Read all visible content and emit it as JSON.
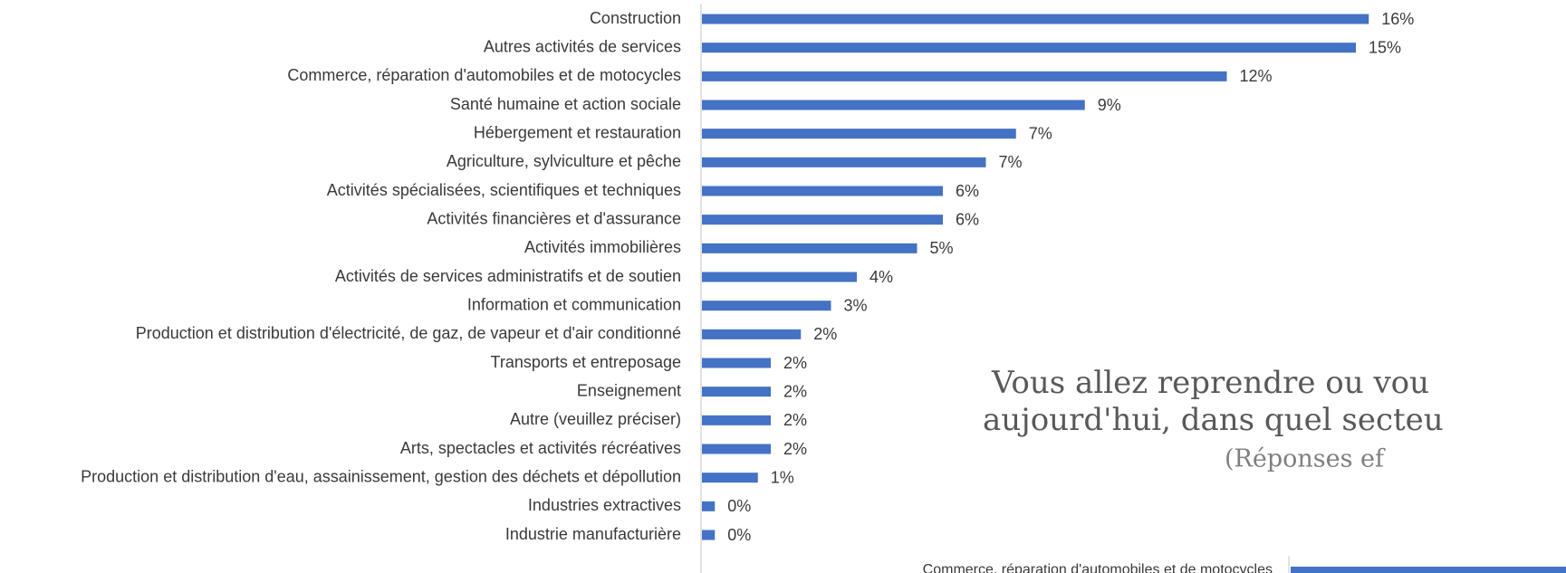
{
  "chart_data": {
    "type": "bar",
    "orientation": "horizontal",
    "categories": [
      "Construction",
      "Autres activités de services",
      "Commerce, réparation d'automobiles et de motocycles",
      "Santé humaine et action sociale",
      "Hébergement et restauration",
      "Agriculture, sylviculture et pêche",
      "Activités spécialisées, scientifiques et techniques",
      "Activités financières et d'assurance",
      "Activités immobilières",
      "Activités de services administratifs et de soutien",
      "Information et communication",
      "Production et distribution d'électricité, de gaz, de vapeur et d'air conditionné",
      "Transports et entreposage",
      "Enseignement",
      "Autre (veuillez préciser)",
      "Arts, spectacles et activités récréatives",
      "Production et distribution d'eau, assainissement, gestion des déchets et dépollution",
      "Industries extractives",
      "Industrie manufacturière"
    ],
    "values": [
      15.5,
      15.2,
      12.2,
      8.9,
      7.3,
      6.6,
      5.6,
      5.6,
      5.0,
      3.6,
      3.0,
      2.3,
      1.6,
      1.6,
      1.6,
      1.6,
      1.3,
      0.3,
      0.3
    ],
    "value_labels": [
      "16%",
      "15%",
      "12%",
      "9%",
      "7%",
      "7%",
      "6%",
      "6%",
      "5%",
      "4%",
      "3%",
      "2%",
      "2%",
      "2%",
      "2%",
      "2%",
      "1%",
      "0%",
      "0%"
    ],
    "color": "#4472c4",
    "xlim": [
      0,
      20
    ]
  },
  "overlay": {
    "title_lines": [
      "Vous allez reprendre ou vou",
      "aujourd'hui, dans quel secteu"
    ],
    "subtitle": "(Réponses ef",
    "next_category": "Commerce, réparation d'automobiles et de motocycles"
  }
}
